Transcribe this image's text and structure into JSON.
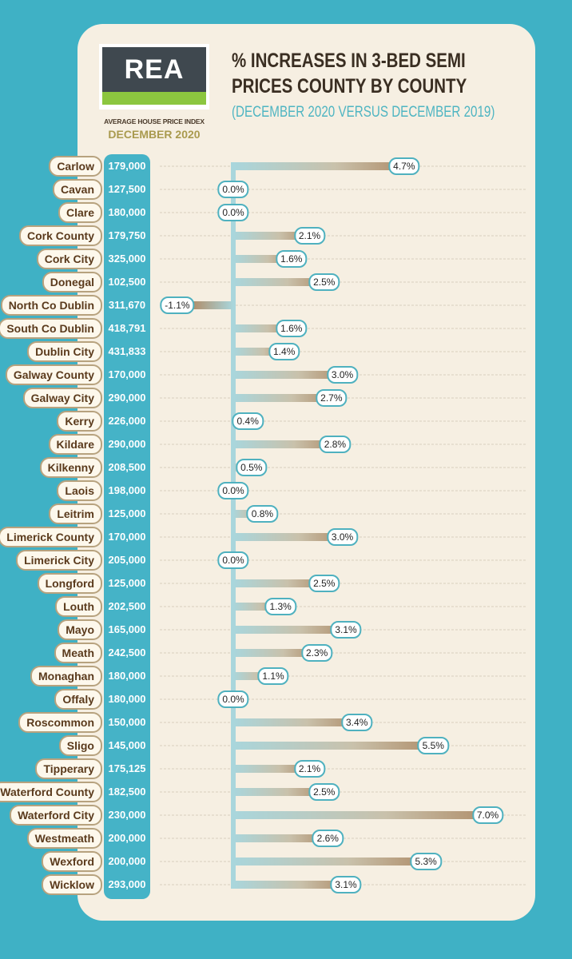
{
  "logo_text": "REA",
  "index_label": "AVERAGE HOUSE PRICE INDEX",
  "index_date": "DECEMBER 2020",
  "colors": {
    "background": "#3fb1c5",
    "card": "#f6efe2",
    "bar_start": "#a9d6dc",
    "bar_end": "#b59f83",
    "logo_green": "#8cc63f"
  },
  "chart_data": {
    "type": "bar",
    "orientation": "horizontal",
    "title": "% INCREASES IN 3-BED SEMI PRICES COUNTY BY COUNTY",
    "subtitle": "(DECEMBER 2020 VERSUS DECEMBER 2019)",
    "categories": [
      "Carlow",
      "Cavan",
      "Clare",
      "Cork County",
      "Cork City",
      "Donegal",
      "North Co Dublin",
      "South Co Dublin",
      "Dublin City",
      "Galway County",
      "Galway City",
      "Kerry",
      "Kildare",
      "Kilkenny",
      "Laois",
      "Leitrim",
      "Limerick County",
      "Limerick City",
      "Longford",
      "Louth",
      "Mayo",
      "Meath",
      "Monaghan",
      "Offaly",
      "Roscommon",
      "Sligo",
      "Tipperary",
      "Waterford County",
      "Waterford City",
      "Westmeath",
      "Wexford",
      "Wicklow"
    ],
    "prices": [
      "179,000",
      "127,500",
      "180,000",
      "179,750",
      "325,000",
      "102,500",
      "311,670",
      "418,791",
      "431,833",
      "170,000",
      "290,000",
      "226,000",
      "290,000",
      "208,500",
      "198,000",
      "125,000",
      "170,000",
      "205,000",
      "125,000",
      "202,500",
      "165,000",
      "242,500",
      "180,000",
      "180,000",
      "150,000",
      "145,000",
      "175,125",
      "182,500",
      "230,000",
      "200,000",
      "200,000",
      "293,000"
    ],
    "values": [
      4.7,
      0.0,
      0.0,
      2.1,
      1.6,
      2.5,
      -1.1,
      1.6,
      1.4,
      3.0,
      2.7,
      0.4,
      2.8,
      0.5,
      0.0,
      0.8,
      3.0,
      0.0,
      2.5,
      1.3,
      3.1,
      2.3,
      1.1,
      0.0,
      3.4,
      5.5,
      2.1,
      2.5,
      7.0,
      2.6,
      5.3,
      3.1
    ],
    "value_labels": [
      "4.7%",
      "0.0%",
      "0.0%",
      "2.1%",
      "1.6%",
      "2.5%",
      "-1.1%",
      "1.6%",
      "1.4%",
      "3.0%",
      "2.7%",
      "0.4%",
      "2.8%",
      "0.5%",
      "0.0%",
      "0.8%",
      "3.0%",
      "0.0%",
      "2.5%",
      "1.3%",
      "3.1%",
      "2.3%",
      "1.1%",
      "0.0%",
      "3.4%",
      "5.5%",
      "2.1%",
      "2.5%",
      "7.0%",
      "2.6%",
      "5.3%",
      "3.1%"
    ],
    "grid": true
  }
}
